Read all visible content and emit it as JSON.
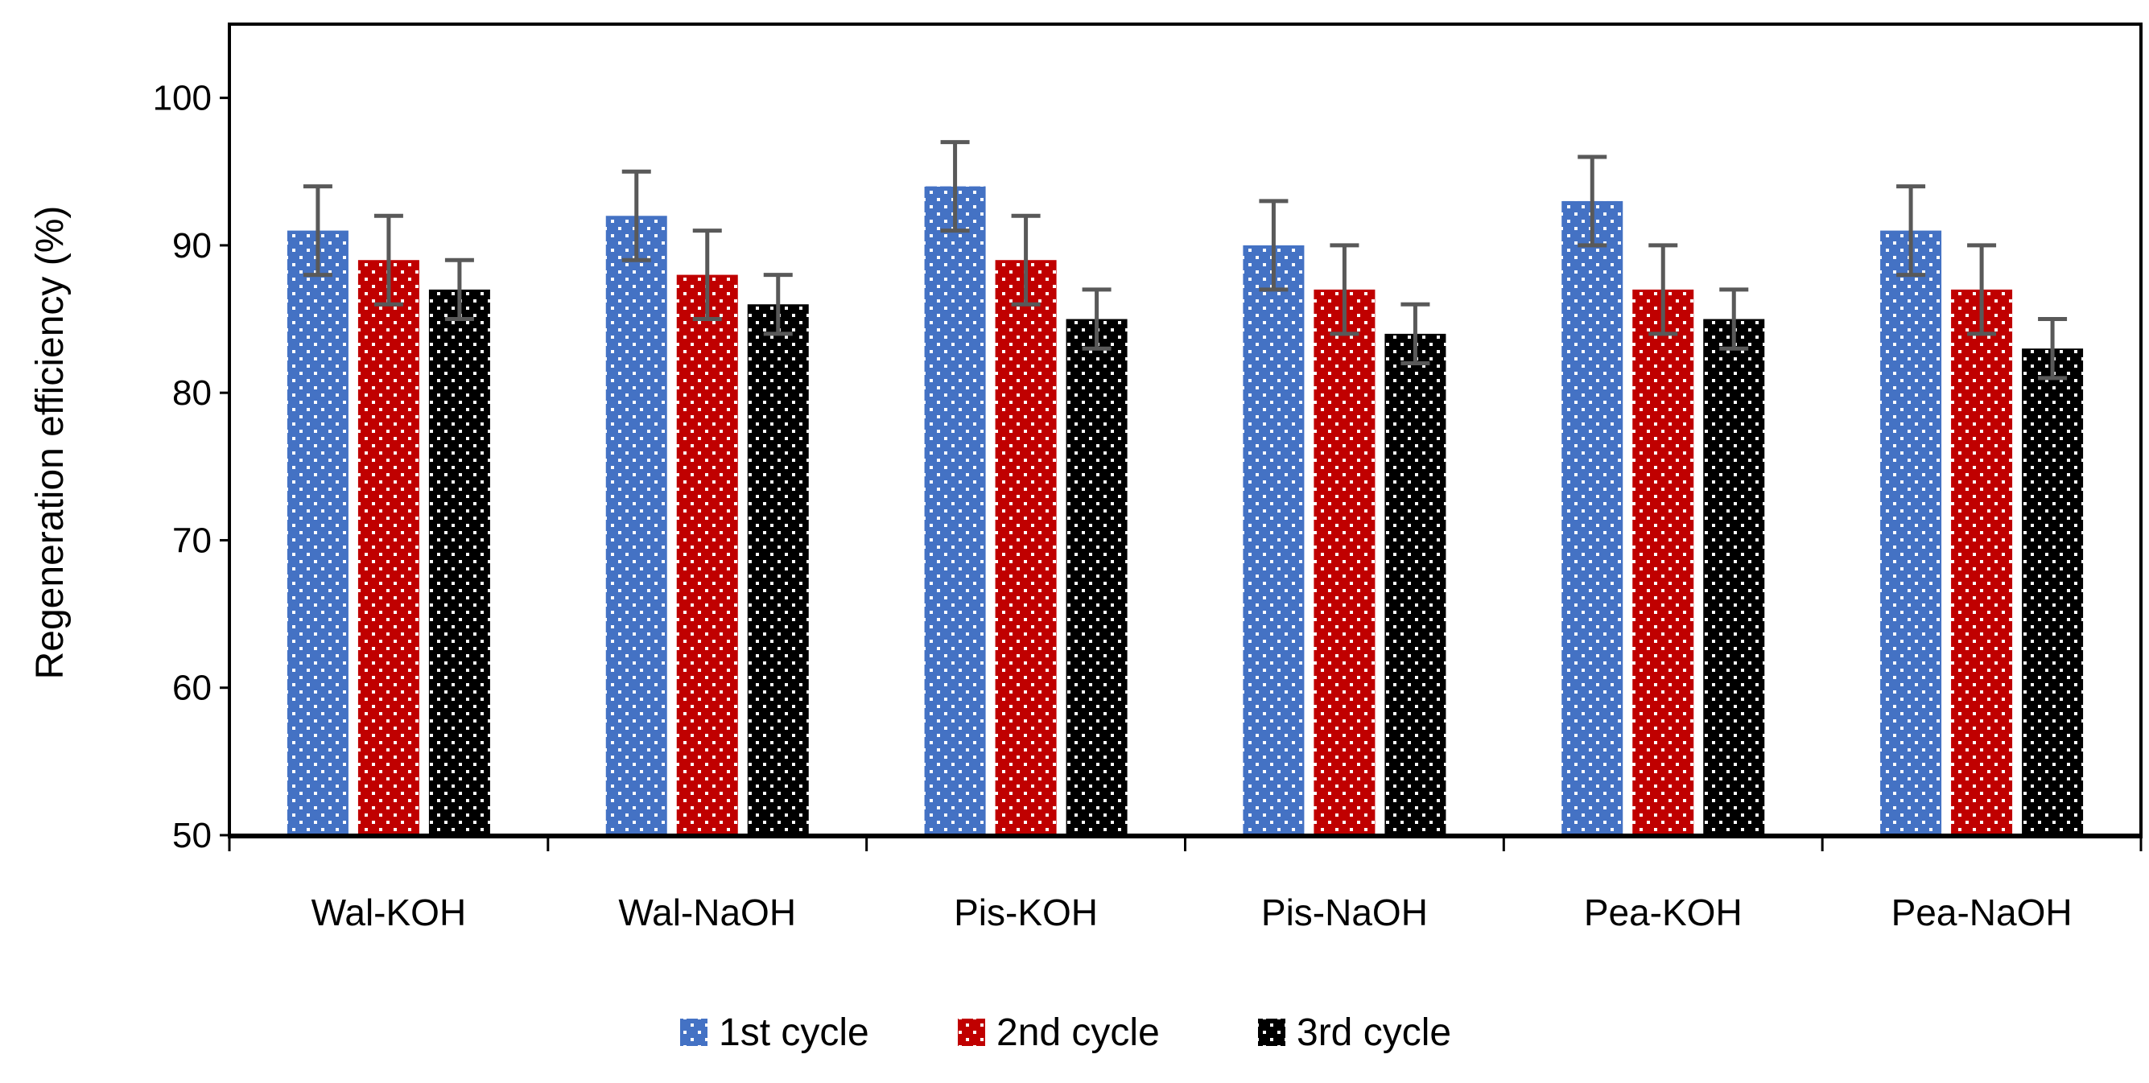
{
  "chart_data": {
    "type": "bar",
    "title": "",
    "xlabel": "",
    "ylabel": "Regeneration efficiency (%)",
    "ylim": [
      50,
      105
    ],
    "yticks": [
      50,
      60,
      70,
      80,
      90,
      100
    ],
    "grid": false,
    "legend_position": "bottom-center",
    "categories": [
      "Wal-KOH",
      "Wal-NaOH",
      "Pis-KOH",
      "Pis-NaOH",
      "Pea-KOH",
      "Pea-NaOH"
    ],
    "series": [
      {
        "name": "1st cycle",
        "color": "#4472C4",
        "values": [
          91,
          92,
          94,
          90,
          93,
          91
        ],
        "errors": [
          3,
          3,
          3,
          3,
          3,
          3
        ]
      },
      {
        "name": "2nd cycle",
        "color": "#C00000",
        "values": [
          89,
          88,
          89,
          87,
          87,
          87
        ],
        "errors": [
          3,
          3,
          3,
          3,
          3,
          3
        ]
      },
      {
        "name": "3rd cycle",
        "color": "#000000",
        "values": [
          87,
          86,
          85,
          84,
          85,
          83
        ],
        "errors": [
          2,
          2,
          2,
          2,
          2,
          2
        ]
      }
    ],
    "error_bar_color": "#595959",
    "pattern": "dotted"
  }
}
